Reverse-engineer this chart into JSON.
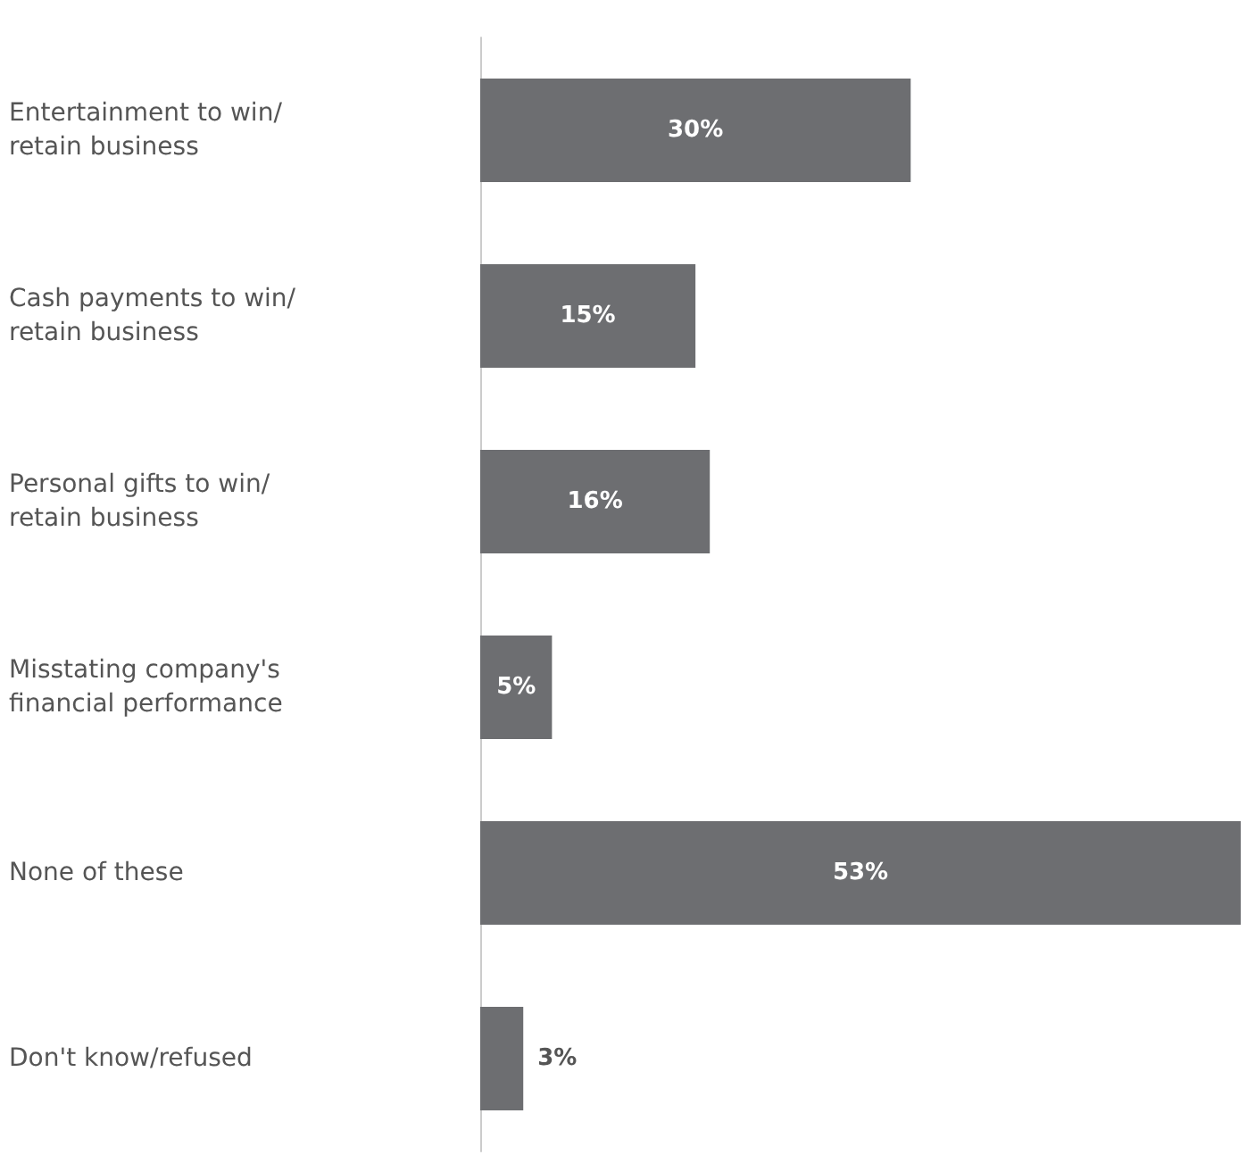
{
  "chart_data": {
    "type": "bar",
    "orientation": "horizontal",
    "categories": [
      "Entertainment to win/ retain business",
      "Cash payments to win/ retain business",
      "Personal gifts to win/ retain business",
      "Misstating company's financial performance",
      "None of these",
      "Don't know/refused"
    ],
    "values": [
      30,
      15,
      16,
      5,
      53,
      3
    ],
    "value_labels": [
      "30%",
      "15%",
      "16%",
      "5%",
      "53%",
      "3%"
    ],
    "color": "#6d6e71"
  }
}
